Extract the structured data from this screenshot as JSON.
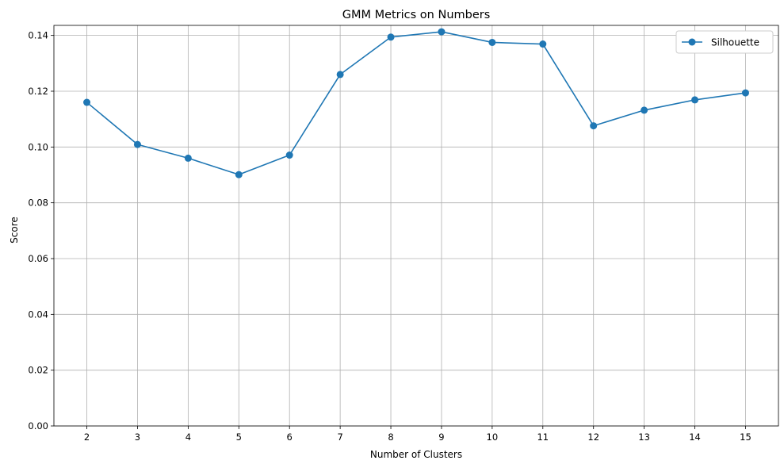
{
  "chart_data": {
    "type": "line",
    "title": "GMM Metrics on Numbers",
    "xlabel": "Number of Clusters",
    "ylabel": "Score",
    "x": [
      2,
      3,
      4,
      5,
      6,
      7,
      8,
      9,
      10,
      11,
      12,
      13,
      14,
      15
    ],
    "xticks": [
      "2",
      "3",
      "4",
      "5",
      "6",
      "7",
      "8",
      "9",
      "10",
      "11",
      "12",
      "13",
      "14",
      "15"
    ],
    "yticks": [
      "0.00",
      "0.02",
      "0.04",
      "0.06",
      "0.08",
      "0.10",
      "0.12",
      "0.14"
    ],
    "ytick_values": [
      0.0,
      0.02,
      0.04,
      0.06,
      0.08,
      0.1,
      0.12,
      0.14
    ],
    "xlim": [
      1.35,
      15.65
    ],
    "ylim": [
      0.0,
      0.1436
    ],
    "grid": true,
    "legend_position": "top-right",
    "series": [
      {
        "name": "Silhouette",
        "color": "#1f77b4",
        "marker": "circle",
        "values": [
          0.116,
          0.1009,
          0.096,
          0.0901,
          0.0971,
          0.126,
          0.1394,
          0.1413,
          0.1375,
          0.1369,
          0.1076,
          0.1132,
          0.1169,
          0.1194
        ]
      }
    ]
  }
}
